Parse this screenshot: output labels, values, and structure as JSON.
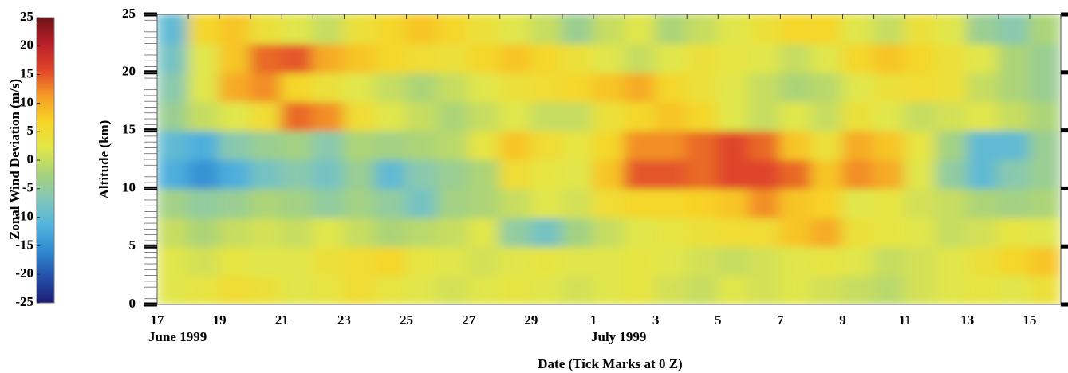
{
  "chart_data": {
    "type": "heatmap",
    "y_label": "Altitude (km)",
    "x_label": "Date (Tick Marks at 0 Z)",
    "x_sublabels": [
      "June 1999",
      "July 1999"
    ],
    "categories": [
      "17",
      null,
      "19",
      null,
      "21",
      null,
      "23",
      null,
      "25",
      null,
      "27",
      null,
      "29",
      null,
      "1",
      null,
      "3",
      null,
      "5",
      null,
      "7",
      null,
      "9",
      null,
      "11",
      null,
      "13",
      null,
      "15"
    ],
    "y": [
      1.25,
      3.75,
      6.25,
      8.75,
      11.25,
      13.75,
      16.25,
      18.75,
      21.25,
      23.75
    ],
    "ylim": [
      0,
      25
    ],
    "yticks": [
      0,
      5,
      10,
      15,
      20,
      25
    ],
    "z": [
      [
        2,
        3,
        5,
        4,
        2,
        3,
        5,
        3,
        2,
        1,
        2,
        3,
        2,
        1,
        2,
        3,
        1,
        0,
        2,
        1,
        2,
        1,
        0,
        -1,
        1,
        2,
        3,
        2,
        4
      ],
      [
        2,
        1,
        3,
        2,
        2,
        4,
        5,
        6,
        3,
        2,
        1,
        2,
        3,
        2,
        2,
        3,
        2,
        1,
        0,
        1,
        2,
        3,
        2,
        0,
        1,
        2,
        4,
        6,
        8
      ],
      [
        0,
        -2,
        0,
        1,
        0,
        2,
        0,
        -2,
        -1,
        0,
        2,
        -5,
        -8,
        -3,
        0,
        2,
        3,
        4,
        5,
        5,
        8,
        10,
        4,
        3,
        2,
        0,
        1,
        3,
        2
      ],
      [
        -3,
        -5,
        -4,
        -2,
        -3,
        -5,
        -3,
        -5,
        -8,
        -3,
        -2,
        0,
        2,
        1,
        5,
        6,
        6,
        7,
        8,
        12,
        8,
        7,
        2,
        3,
        1,
        0,
        -2,
        -3,
        -2
      ],
      [
        -12,
        -15,
        -12,
        -8,
        -6,
        -8,
        -4,
        -10,
        -6,
        -4,
        -2,
        5,
        3,
        2,
        8,
        15,
        15,
        14,
        16,
        16,
        14,
        8,
        12,
        10,
        2,
        -5,
        -10,
        -6,
        -4
      ],
      [
        -10,
        -12,
        -6,
        -4,
        -3,
        -6,
        -2,
        -3,
        -2,
        -1,
        3,
        8,
        5,
        3,
        6,
        12,
        12,
        14,
        16,
        14,
        8,
        4,
        10,
        8,
        3,
        -3,
        -10,
        -10,
        -4
      ],
      [
        -4,
        0,
        2,
        5,
        14,
        12,
        5,
        2,
        0,
        -2,
        0,
        2,
        0,
        0,
        4,
        6,
        8,
        6,
        2,
        0,
        2,
        0,
        4,
        2,
        0,
        1,
        2,
        0,
        -2
      ],
      [
        -6,
        2,
        10,
        12,
        6,
        4,
        2,
        0,
        -2,
        0,
        2,
        4,
        5,
        6,
        8,
        10,
        6,
        4,
        2,
        0,
        -2,
        -1,
        2,
        4,
        5,
        4,
        0,
        -2,
        -4
      ],
      [
        -8,
        2,
        8,
        14,
        15,
        10,
        8,
        6,
        5,
        4,
        6,
        8,
        6,
        4,
        2,
        0,
        2,
        4,
        3,
        2,
        0,
        2,
        6,
        8,
        6,
        4,
        2,
        -2,
        -4
      ],
      [
        -10,
        6,
        8,
        4,
        2,
        0,
        4,
        6,
        8,
        6,
        4,
        2,
        0,
        -4,
        0,
        2,
        -2,
        0,
        2,
        4,
        6,
        6,
        2,
        0,
        4,
        2,
        -4,
        -6,
        -2
      ]
    ],
    "colorbar": {
      "label": "Zonal Wind Deviation (m/s)",
      "lim": [
        -25,
        25
      ],
      "ticks": [
        25,
        20,
        15,
        10,
        5,
        0,
        -5,
        -10,
        -15,
        -20,
        -25
      ]
    },
    "colormap": [
      "#1c1c74",
      "#2450a8",
      "#2f8ad0",
      "#52b5de",
      "#82c7b8",
      "#a9d37a",
      "#e3e748",
      "#f8d426",
      "#f59a26",
      "#e0452a",
      "#b81f2a",
      "#6e1414"
    ]
  }
}
